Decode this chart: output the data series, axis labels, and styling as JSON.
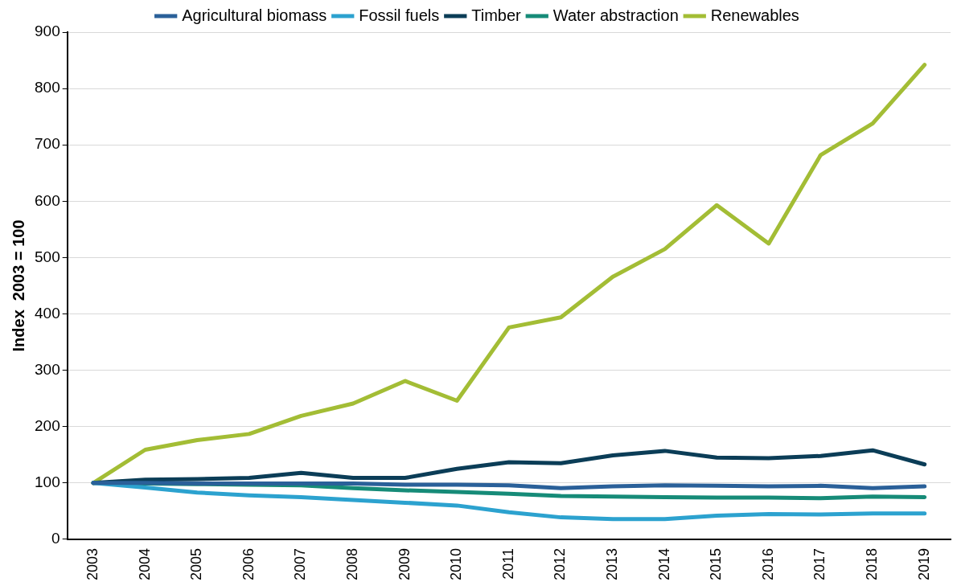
{
  "chart_data": {
    "type": "line",
    "ylabel": "Index  2003 = 100",
    "categories": [
      "2003",
      "2004",
      "2005",
      "2006",
      "2007",
      "2008",
      "2009",
      "2010",
      "2011",
      "2012",
      "2013",
      "2014",
      "2015",
      "2016",
      "2017",
      "2018",
      "2019"
    ],
    "series": [
      {
        "name": "Agricultural biomass",
        "color": "#2a6099",
        "values": [
          100,
          100,
          99,
          99,
          99,
          99,
          97,
          97,
          96,
          91,
          94,
          96,
          95,
          94,
          95,
          91,
          94
        ]
      },
      {
        "name": "Fossil fuels",
        "color": "#2ca2cf",
        "values": [
          100,
          92,
          83,
          78,
          75,
          70,
          65,
          60,
          48,
          39,
          36,
          36,
          42,
          45,
          44,
          46,
          46
        ]
      },
      {
        "name": "Timber",
        "color": "#0b3d57",
        "values": [
          100,
          106,
          107,
          109,
          118,
          109,
          109,
          125,
          137,
          135,
          149,
          157,
          145,
          144,
          148,
          158,
          133
        ]
      },
      {
        "name": "Water abstraction",
        "color": "#168b78",
        "values": [
          100,
          99,
          98,
          97,
          96,
          91,
          87,
          84,
          81,
          77,
          76,
          75,
          74,
          74,
          73,
          76,
          75
        ]
      },
      {
        "name": "Renewables",
        "color": "#a3bd35",
        "values": [
          100,
          159,
          176,
          187,
          219,
          241,
          281,
          246,
          376,
          394,
          466,
          515,
          593,
          525,
          682,
          738,
          842
        ]
      }
    ],
    "ylim": [
      0,
      900
    ],
    "yticks": [
      0,
      100,
      200,
      300,
      400,
      500,
      600,
      700,
      800,
      900
    ],
    "grid": "y",
    "legend": "top",
    "marker": "none",
    "line_style": "solid"
  }
}
